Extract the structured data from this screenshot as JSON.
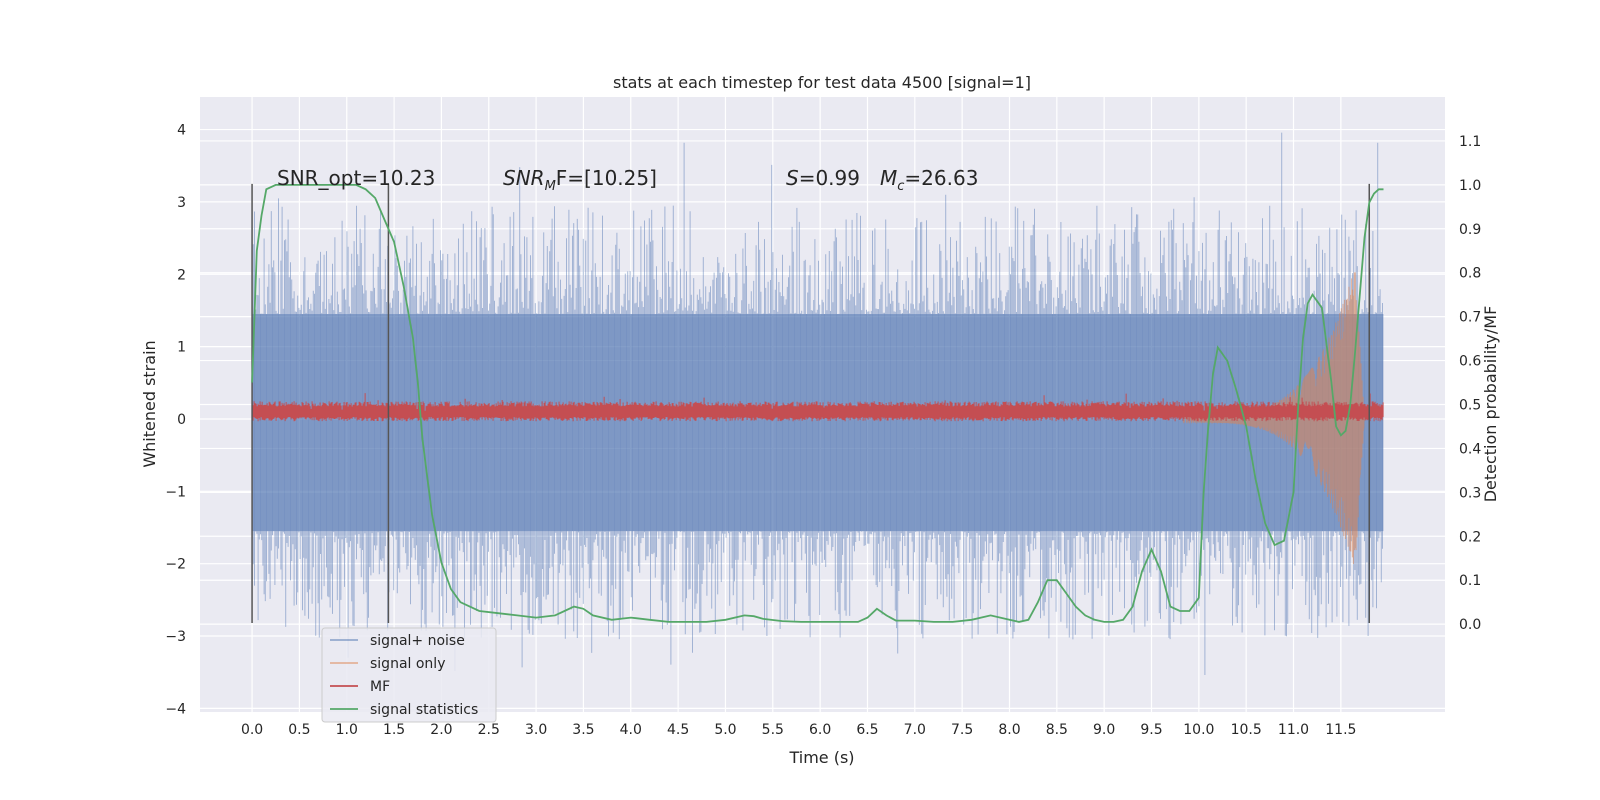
{
  "chart_data": {
    "type": "line",
    "title": "stats at each timestep for test data 4500 [signal=1]",
    "xlabel": "Time (s)",
    "ylabel": "Whitened strain",
    "y2label": "Detection probability/MF",
    "xlim": [
      -0.55,
      12.6
    ],
    "ylim": [
      -4.05,
      4.45
    ],
    "y2lim": [
      -0.2,
      1.2
    ],
    "xticks": [
      0.0,
      0.5,
      1.0,
      1.5,
      2.0,
      2.5,
      3.0,
      3.5,
      4.0,
      4.5,
      5.0,
      5.5,
      6.0,
      6.5,
      7.0,
      7.5,
      8.0,
      8.5,
      9.0,
      9.5,
      10.0,
      10.5,
      11.0,
      11.5
    ],
    "xtick_labels": [
      "0.0",
      "0.5",
      "1.0",
      "1.5",
      "2.0",
      "2.5",
      "3.0",
      "3.5",
      "4.0",
      "4.5",
      "5.0",
      "5.5",
      "6.0",
      "6.5",
      "7.0",
      "7.5",
      "8.0",
      "8.5",
      "9.0",
      "9.5",
      "10.0",
      "10.5",
      "11.0",
      "11.5"
    ],
    "yticks": [
      4,
      3,
      2,
      1,
      0,
      -1,
      -2,
      -3,
      -4
    ],
    "ytick_labels": [
      "4",
      "3",
      "2",
      "1",
      "0",
      "−1",
      "−2",
      "−3",
      "−4"
    ],
    "y2ticks": [
      1.1,
      1.0,
      0.9,
      0.8,
      0.7,
      0.6,
      0.5,
      0.4,
      0.3,
      0.2,
      0.1,
      0.0
    ],
    "y2tick_labels": [
      "1.1",
      "1.0",
      "0.9",
      "0.8",
      "0.7",
      "0.6",
      "0.5",
      "0.4",
      "0.3",
      "0.2",
      "0.1",
      "0.0"
    ],
    "grid": true,
    "legend_placement": "lower-left",
    "legend": [
      "signal+ noise",
      "signal only",
      "MF",
      "signal statistics"
    ],
    "annotations": {
      "snr_opt": "SNR_opt=10.23",
      "snr_mf_main": "SNR",
      "snr_mf_sub": "M",
      "snr_mf_tail": "F=[10.25]",
      "s_main": "S",
      "s_tail": "=0.99",
      "mc_main": "M",
      "mc_sub": "c",
      "mc_tail": "=26.63"
    },
    "vertical_lines": [
      {
        "x": 0.0,
        "y_from": -2.82,
        "y_to": 3.25
      },
      {
        "x": 1.44,
        "y_from": -2.82,
        "y_to": 3.25
      },
      {
        "x": 11.8,
        "y_from": -2.82,
        "y_to": 3.25
      }
    ],
    "series_colors": {
      "noise": "#4c72b0",
      "signal": "#dd8452",
      "mf": "#c44e52",
      "stats": "#55a868"
    },
    "series": [
      {
        "name": "signal statistics",
        "axis": "right",
        "x": [
          0.0,
          0.05,
          0.1,
          0.15,
          0.25,
          0.4,
          0.6,
          0.8,
          1.0,
          1.1,
          1.2,
          1.3,
          1.4,
          1.5,
          1.6,
          1.7,
          1.75,
          1.8,
          1.9,
          2.0,
          2.1,
          2.2,
          2.3,
          2.4,
          2.6,
          2.8,
          3.0,
          3.2,
          3.3,
          3.4,
          3.5,
          3.6,
          3.8,
          4.0,
          4.2,
          4.4,
          4.6,
          4.8,
          5.0,
          5.2,
          5.3,
          5.4,
          5.6,
          5.8,
          6.0,
          6.2,
          6.4,
          6.5,
          6.6,
          6.7,
          6.8,
          7.0,
          7.2,
          7.4,
          7.6,
          7.8,
          8.0,
          8.1,
          8.2,
          8.3,
          8.4,
          8.5,
          8.6,
          8.7,
          8.8,
          8.9,
          9.0,
          9.1,
          9.2,
          9.3,
          9.4,
          9.5,
          9.6,
          9.7,
          9.8,
          9.9,
          10.0,
          10.05,
          10.1,
          10.15,
          10.2,
          10.3,
          10.4,
          10.5,
          10.6,
          10.7,
          10.8,
          10.9,
          11.0,
          11.05,
          11.1,
          11.15,
          11.2,
          11.3,
          11.4,
          11.45,
          11.5,
          11.55,
          11.6,
          11.65,
          11.7,
          11.75,
          11.8,
          11.85,
          11.9,
          11.95
        ],
        "values": [
          0.55,
          0.85,
          0.93,
          0.99,
          1.0,
          1.0,
          1.0,
          1.0,
          1.0,
          1.0,
          0.99,
          0.97,
          0.92,
          0.87,
          0.77,
          0.65,
          0.55,
          0.42,
          0.25,
          0.14,
          0.08,
          0.05,
          0.04,
          0.03,
          0.025,
          0.02,
          0.015,
          0.02,
          0.03,
          0.04,
          0.035,
          0.02,
          0.01,
          0.015,
          0.01,
          0.005,
          0.005,
          0.005,
          0.01,
          0.02,
          0.018,
          0.012,
          0.007,
          0.005,
          0.005,
          0.005,
          0.005,
          0.015,
          0.035,
          0.02,
          0.008,
          0.008,
          0.005,
          0.005,
          0.01,
          0.02,
          0.01,
          0.005,
          0.01,
          0.05,
          0.1,
          0.1,
          0.07,
          0.04,
          0.02,
          0.01,
          0.005,
          0.005,
          0.01,
          0.04,
          0.12,
          0.17,
          0.12,
          0.04,
          0.03,
          0.03,
          0.06,
          0.3,
          0.45,
          0.57,
          0.63,
          0.6,
          0.53,
          0.45,
          0.33,
          0.23,
          0.18,
          0.19,
          0.3,
          0.5,
          0.65,
          0.73,
          0.75,
          0.72,
          0.55,
          0.45,
          0.43,
          0.44,
          0.5,
          0.62,
          0.75,
          0.88,
          0.96,
          0.98,
          0.99,
          0.99
        ]
      },
      {
        "name": "signal+ noise",
        "axis": "left",
        "envelope": {
          "x_start": 0.0,
          "x_end": 11.95,
          "core_min": -1.55,
          "core_max": 1.45,
          "spike_max": 4.1,
          "spike_min": -3.65
        }
      },
      {
        "name": "MF",
        "axis": "left",
        "envelope": {
          "x_start": 0.0,
          "x_end": 11.95,
          "center": 0.1,
          "half_width": 0.12,
          "spike_max": 0.38
        }
      },
      {
        "name": "signal only",
        "axis": "left",
        "chirp": {
          "x_start": 9.8,
          "x_end": 11.75,
          "amp_start": 0.05,
          "amp_peak": 2.1,
          "peak_x": 11.65
        }
      }
    ]
  }
}
